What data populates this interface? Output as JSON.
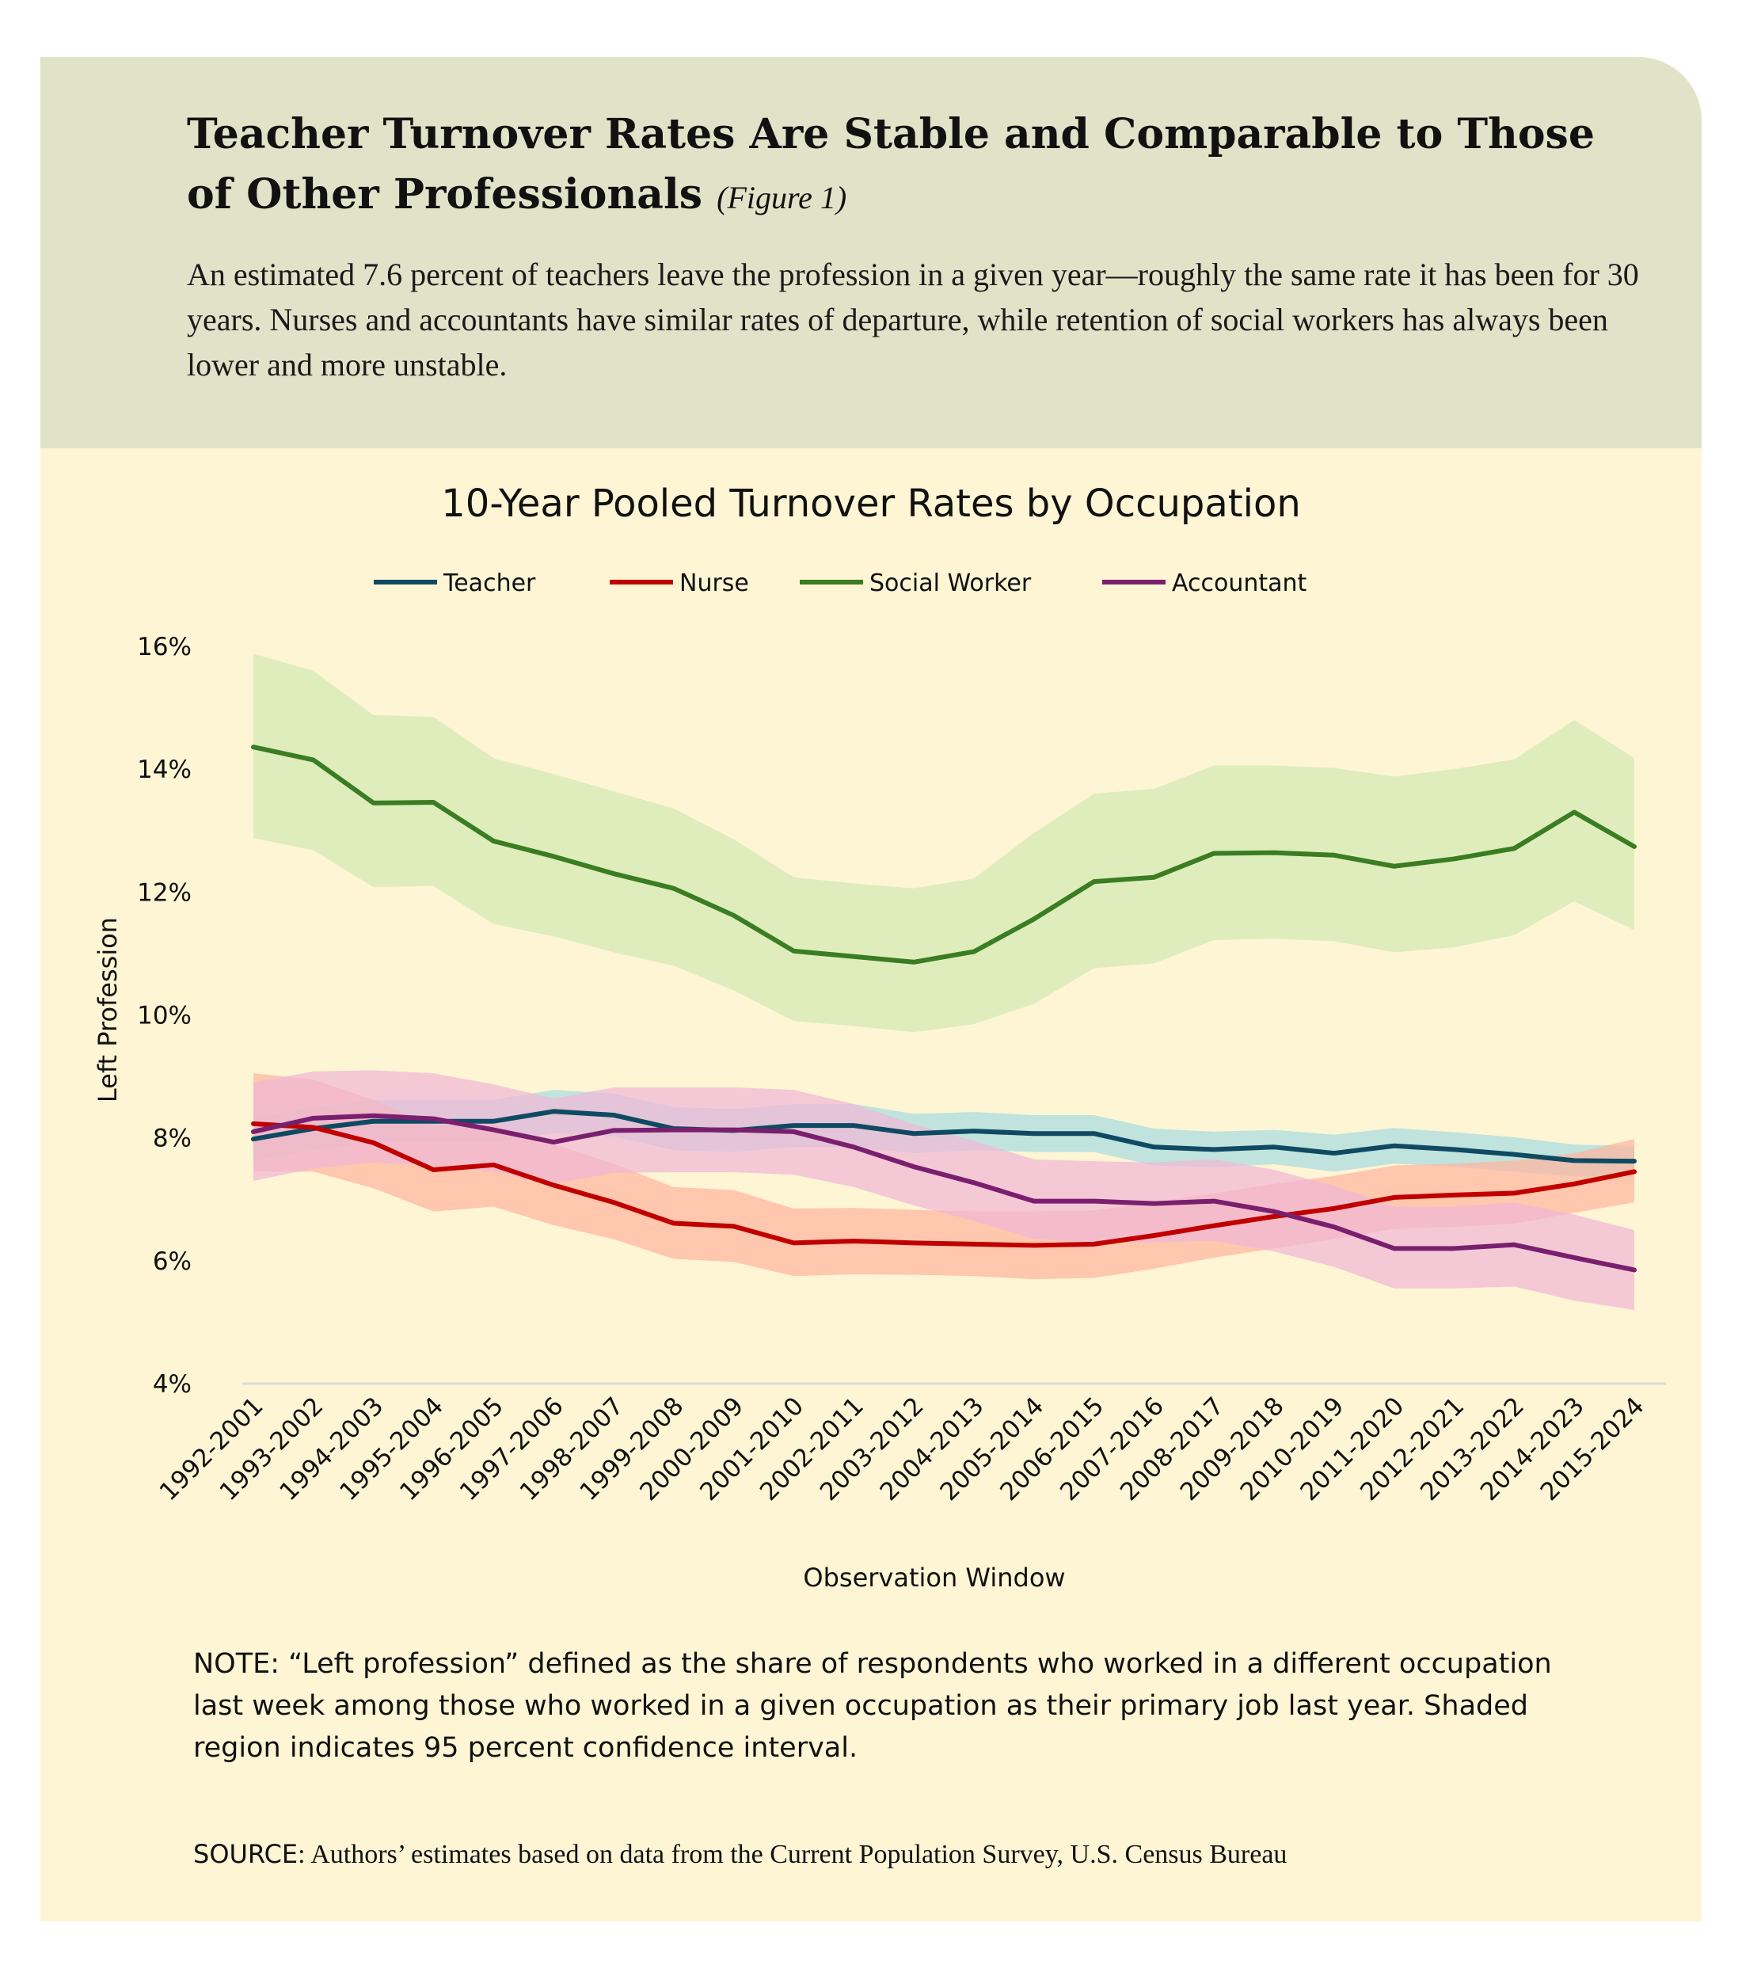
{
  "header": {
    "title": "Teacher Turnover Rates Are Stable and Comparable to Those of Other Professionals",
    "figure_label": "(Figure 1)",
    "subtitle": "An estimated 7.6 percent of teachers leave the profession in a given year—roughly the same rate it has been for 30 years. Nurses and accountants have similar rates of departure, while retention of social workers has always been lower and more unstable."
  },
  "colors": {
    "header_bg": "#e0e3c8",
    "body_bg": "#fdf5d4"
  },
  "chart_data": {
    "type": "line",
    "title": "10-Year Pooled Turnover Rates by Occupation",
    "xlabel": "Observation Window",
    "ylabel": "Left Profession",
    "ylim": [
      4,
      16
    ],
    "yticks": [
      "4%",
      "6%",
      "8%",
      "10%",
      "12%",
      "14%",
      "16%"
    ],
    "ytick_values": [
      4,
      6,
      8,
      10,
      12,
      14,
      16
    ],
    "grid": false,
    "legend_position": "top",
    "categories": [
      "1992-2001",
      "1993-2002",
      "1994-2003",
      "1995-2004",
      "1996-2005",
      "1997-2006",
      "1998-2007",
      "1999-2008",
      "2000-2009",
      "2001-2010",
      "2002-2011",
      "2003-2012",
      "2004-2013",
      "2005-2014",
      "2006-2015",
      "2007-2016",
      "2008-2017",
      "2009-2018",
      "2010-2019",
      "2011-2020",
      "2012-2021",
      "2013-2022",
      "2014-2023",
      "2015-2024"
    ],
    "series": [
      {
        "name": "Teacher",
        "color": "#0f4a63",
        "band_color": "#a8dce0",
        "values": [
          7.98,
          8.15,
          8.27,
          8.27,
          8.27,
          8.43,
          8.37,
          8.15,
          8.12,
          8.2,
          8.2,
          8.07,
          8.11,
          8.07,
          8.07,
          7.85,
          7.81,
          7.85,
          7.75,
          7.87,
          7.81,
          7.73,
          7.63,
          7.62
        ],
        "ci_lower": [
          7.63,
          7.8,
          7.92,
          7.92,
          7.92,
          8.08,
          8.02,
          7.8,
          7.77,
          7.85,
          7.85,
          7.75,
          7.8,
          7.77,
          7.77,
          7.55,
          7.52,
          7.57,
          7.45,
          7.58,
          7.53,
          7.45,
          7.37,
          7.37
        ],
        "ci_upper": [
          8.33,
          8.5,
          8.62,
          8.62,
          8.62,
          8.78,
          8.72,
          8.5,
          8.47,
          8.55,
          8.55,
          8.39,
          8.42,
          8.37,
          8.37,
          8.15,
          8.1,
          8.13,
          8.05,
          8.16,
          8.09,
          8.01,
          7.89,
          7.87
        ]
      },
      {
        "name": "Nurse",
        "color": "#c00000",
        "band_color": "#ffb5a0",
        "values": [
          8.23,
          8.17,
          7.92,
          7.48,
          7.56,
          7.23,
          6.95,
          6.61,
          6.56,
          6.29,
          6.32,
          6.29,
          6.27,
          6.25,
          6.27,
          6.41,
          6.57,
          6.72,
          6.85,
          7.03,
          7.07,
          7.1,
          7.25,
          7.45
        ],
        "ci_lower": [
          7.45,
          7.45,
          7.18,
          6.8,
          6.88,
          6.58,
          6.35,
          6.03,
          5.98,
          5.75,
          5.78,
          5.77,
          5.75,
          5.7,
          5.72,
          5.87,
          6.05,
          6.2,
          6.35,
          6.52,
          6.55,
          6.6,
          6.78,
          6.95
        ],
        "ci_upper": [
          9.05,
          8.95,
          8.62,
          8.2,
          8.22,
          7.9,
          7.58,
          7.2,
          7.15,
          6.85,
          6.86,
          6.83,
          6.8,
          6.8,
          6.82,
          6.95,
          7.1,
          7.25,
          7.38,
          7.55,
          7.58,
          7.63,
          7.75,
          7.98
        ]
      },
      {
        "name": "Social Worker",
        "color": "#3a7d22",
        "band_color": "#d2eab4",
        "values": [
          14.36,
          14.15,
          13.45,
          13.46,
          12.83,
          12.58,
          12.3,
          12.06,
          11.62,
          11.04,
          10.95,
          10.86,
          11.03,
          11.56,
          12.17,
          12.24,
          12.63,
          12.64,
          12.6,
          12.42,
          12.54,
          12.71,
          13.3,
          12.74
        ],
        "ci_lower": [
          12.88,
          12.68,
          12.08,
          12.1,
          11.48,
          11.28,
          11.02,
          10.8,
          10.4,
          9.9,
          9.82,
          9.72,
          9.85,
          10.18,
          10.76,
          10.84,
          11.22,
          11.24,
          11.2,
          11.02,
          11.1,
          11.3,
          11.85,
          11.38
        ],
        "ci_upper": [
          15.88,
          15.6,
          14.88,
          14.85,
          14.18,
          13.92,
          13.64,
          13.36,
          12.86,
          12.24,
          12.14,
          12.06,
          12.22,
          12.96,
          13.6,
          13.68,
          14.06,
          14.06,
          14.02,
          13.88,
          14.0,
          14.16,
          14.8,
          14.18
        ]
      },
      {
        "name": "Accountant",
        "color": "#7a1f6e",
        "band_color": "#f0b8d6",
        "values": [
          8.1,
          8.32,
          8.36,
          8.31,
          8.13,
          7.93,
          8.12,
          8.13,
          8.13,
          8.1,
          7.85,
          7.53,
          7.27,
          6.97,
          6.97,
          6.93,
          6.97,
          6.8,
          6.55,
          6.2,
          6.2,
          6.26,
          6.05,
          5.85
        ],
        "ci_lower": [
          7.3,
          7.5,
          7.6,
          7.55,
          7.45,
          7.25,
          7.43,
          7.44,
          7.44,
          7.4,
          7.2,
          6.9,
          6.65,
          6.35,
          6.3,
          6.3,
          6.32,
          6.15,
          5.9,
          5.55,
          5.55,
          5.58,
          5.35,
          5.2
        ],
        "ci_upper": [
          8.9,
          9.08,
          9.1,
          9.05,
          8.87,
          8.64,
          8.82,
          8.82,
          8.82,
          8.78,
          8.55,
          8.22,
          7.95,
          7.65,
          7.62,
          7.6,
          7.65,
          7.48,
          7.22,
          6.88,
          6.88,
          6.95,
          6.75,
          6.5
        ]
      }
    ]
  },
  "footer": {
    "note": "NOTE: “Left profession” defined as the share of respondents who worked in a different occupation last week among those who worked in a given occupation as their primary job last year. Shaded region indicates 95 percent confidence interval.",
    "source_label": "SOURCE",
    "source_text": ": Authors’ estimates based on data from the Current Population Survey, U.S. Census Bureau"
  }
}
